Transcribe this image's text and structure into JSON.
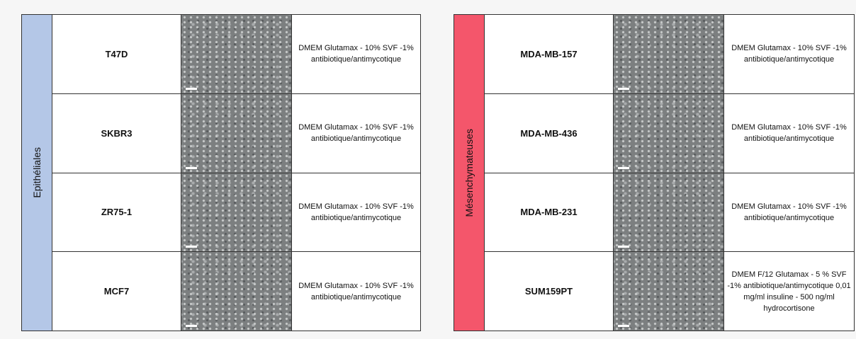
{
  "tables": [
    {
      "group": "Epithéliales",
      "rows": [
        {
          "cell_line": "T47D",
          "medium": "DMEM Glutamax - 10% SVF -1% antibiotique/antimycotique"
        },
        {
          "cell_line": "SKBR3",
          "medium": "DMEM Glutamax - 10% SVF -1% antibiotique/antimycotique"
        },
        {
          "cell_line": "ZR75-1",
          "medium": "DMEM Glutamax - 10% SVF -1% antibiotique/antimycotique"
        },
        {
          "cell_line": "MCF7",
          "medium": "DMEM Glutamax - 10% SVF -1% antibiotique/antimycotique"
        }
      ]
    },
    {
      "group": "Mésenchymateuses",
      "rows": [
        {
          "cell_line": "MDA-MB-157",
          "medium": "DMEM Glutamax - 10% SVF -1% antibiotique/antimycotique"
        },
        {
          "cell_line": "MDA-MB-436",
          "medium": "DMEM Glutamax - 10% SVF -1% antibiotique/antimycotique"
        },
        {
          "cell_line": "MDA-MB-231",
          "medium": "DMEM Glutamax - 10% SVF -1% antibiotique/antimycotique"
        },
        {
          "cell_line": "SUM159PT",
          "medium": "DMEM F/12 Glutamax - 5 % SVF -1% antibiotique/antimycotique 0,01 mg/ml insuline - 500 ng/ml hydrocortisone"
        }
      ]
    }
  ]
}
